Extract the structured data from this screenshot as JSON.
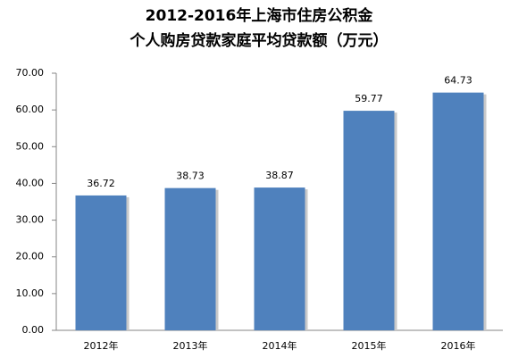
{
  "chart_data": {
    "type": "bar",
    "title": "2012-2016年上海市住房公积金",
    "subtitle": "个人购房贷款家庭平均贷款额（万元）",
    "categories": [
      "2012年",
      "2013年",
      "2014年",
      "2015年",
      "2016年"
    ],
    "values": [
      36.72,
      38.73,
      38.87,
      59.77,
      64.73
    ],
    "color": "#4f81bd",
    "ylim": [
      0,
      70
    ],
    "yticks": [
      {
        "value": 0,
        "label": "0.00"
      },
      {
        "value": 10,
        "label": "10.00"
      },
      {
        "value": 20,
        "label": "20.00"
      },
      {
        "value": 30,
        "label": "30.00"
      },
      {
        "value": 40,
        "label": "40.00"
      },
      {
        "value": 50,
        "label": "50.00"
      },
      {
        "value": 60,
        "label": "60.00"
      },
      {
        "value": 70,
        "label": "70.00"
      }
    ],
    "grid": false
  }
}
